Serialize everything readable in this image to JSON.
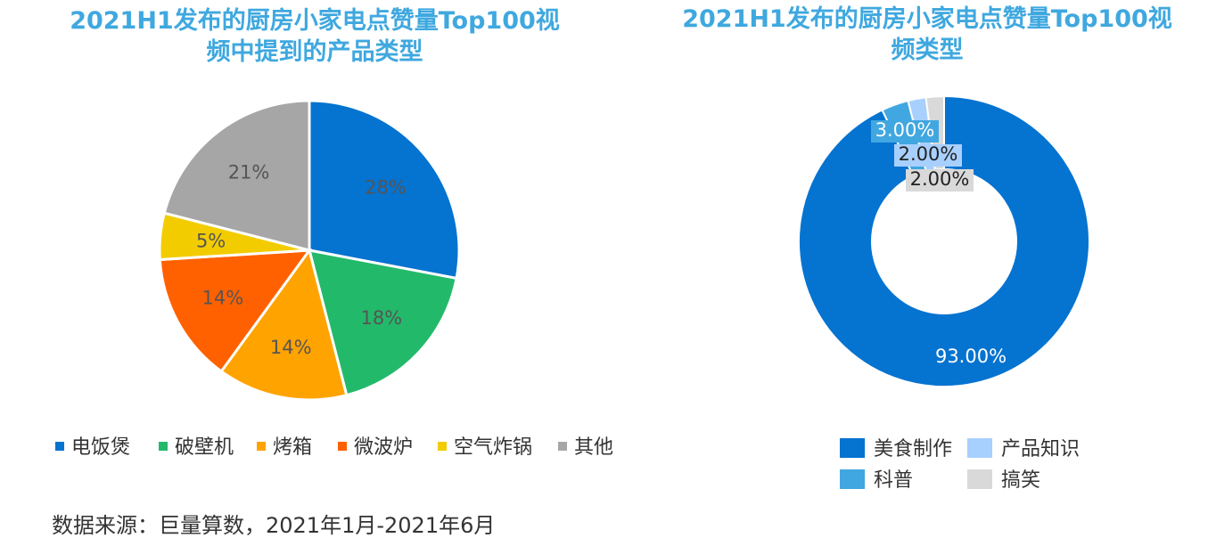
{
  "colors": {
    "title": "#3fa8df",
    "dianfanbao": "#0573d0",
    "pobiji": "#23b96b",
    "kaoxiang": "#ffa300",
    "weibolu": "#ff6100",
    "kongqizhaguo": "#f3cc00",
    "qita": "#a6a6a6",
    "meishi": "#0573d0",
    "kepu": "#41a7e0",
    "chanpin": "#a8d0ff",
    "gaoxiao": "#d9d9d9"
  },
  "chart_data": [
    {
      "type": "pie",
      "title": "2021H1发布的厨房小家电点赞量Top100视频中提到的产品类型",
      "title_lines": [
        "2021H1发布的厨房小家电点赞量Top100视",
        "频中提到的产品类型"
      ],
      "slices": [
        {
          "label": "电饭煲",
          "value": 28,
          "display": "28%",
          "color": "#0573d0"
        },
        {
          "label": "破壁机",
          "value": 18,
          "display": "18%",
          "color": "#23b96b"
        },
        {
          "label": "烤箱",
          "value": 14,
          "display": "14%",
          "color": "#ffa300"
        },
        {
          "label": "微波炉",
          "value": 14,
          "display": "14%",
          "color": "#ff6100"
        },
        {
          "label": "空气炸锅",
          "value": 5,
          "display": "5%",
          "color": "#f3cc00"
        },
        {
          "label": "其他",
          "value": 21,
          "display": "21%",
          "color": "#a6a6a6"
        }
      ],
      "legend_position": "bottom"
    },
    {
      "type": "pie",
      "subtype": "donut",
      "title": "2021H1发布的厨房小家电点赞量Top100视频类型",
      "title_lines": [
        "2021H1发布的厨房小家电点赞量Top100视",
        "频类型"
      ],
      "slices": [
        {
          "label": "美食制作",
          "value": 93,
          "display": "93.00%",
          "color": "#0573d0"
        },
        {
          "label": "科普",
          "value": 3,
          "display": "3.00%",
          "color": "#41a7e0"
        },
        {
          "label": "产品知识",
          "value": 2,
          "display": "2.00%",
          "color": "#a8d0ff"
        },
        {
          "label": "搞笑",
          "value": 2,
          "display": "2.00%",
          "color": "#d9d9d9"
        }
      ],
      "legend_order": [
        "美食制作",
        "产品知识",
        "科普",
        "搞笑"
      ],
      "legend_position": "bottom"
    }
  ],
  "source": "数据来源：巨量算数，2021年1月-2021年6月"
}
